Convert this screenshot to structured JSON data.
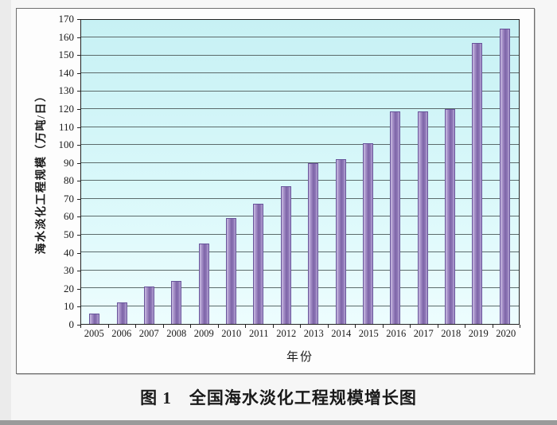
{
  "figure": {
    "caption": "图 1　全国海水淡化工程规模增长图"
  },
  "chart_data": {
    "type": "bar",
    "title": "图1 全国海水淡化工程规模增长图",
    "xlabel": "年份",
    "ylabel": "海水淡化工程规模（万吨/日）",
    "categories": [
      "2005",
      "2006",
      "2007",
      "2008",
      "2009",
      "2010",
      "2011",
      "2012",
      "2013",
      "2014",
      "2015",
      "2016",
      "2017",
      "2018",
      "2019",
      "2020"
    ],
    "values": [
      6,
      12,
      21,
      24,
      45,
      59,
      67,
      77,
      90,
      92,
      101,
      119,
      119,
      120,
      157,
      165
    ],
    "ylim": [
      0,
      170
    ],
    "ytick_step": 10,
    "yticks": [
      0,
      10,
      20,
      30,
      40,
      50,
      60,
      70,
      80,
      90,
      100,
      110,
      120,
      130,
      140,
      150,
      160,
      170
    ],
    "grid": true,
    "legend": "none",
    "colors": {
      "bar_light": "#cabce2",
      "bar_mid1": "#a18bc4",
      "bar_dark": "#7c64a7",
      "bar_mid2": "#9079b8",
      "bar_light2": "#b5a4d4",
      "bar_border": "#67539a",
      "plot_bg_top": "#c7f1f4",
      "plot_bg_mid": "#d9f8fa",
      "plot_bg_bottom": "#edfdfe",
      "gridline": "#5c6b6b"
    }
  }
}
